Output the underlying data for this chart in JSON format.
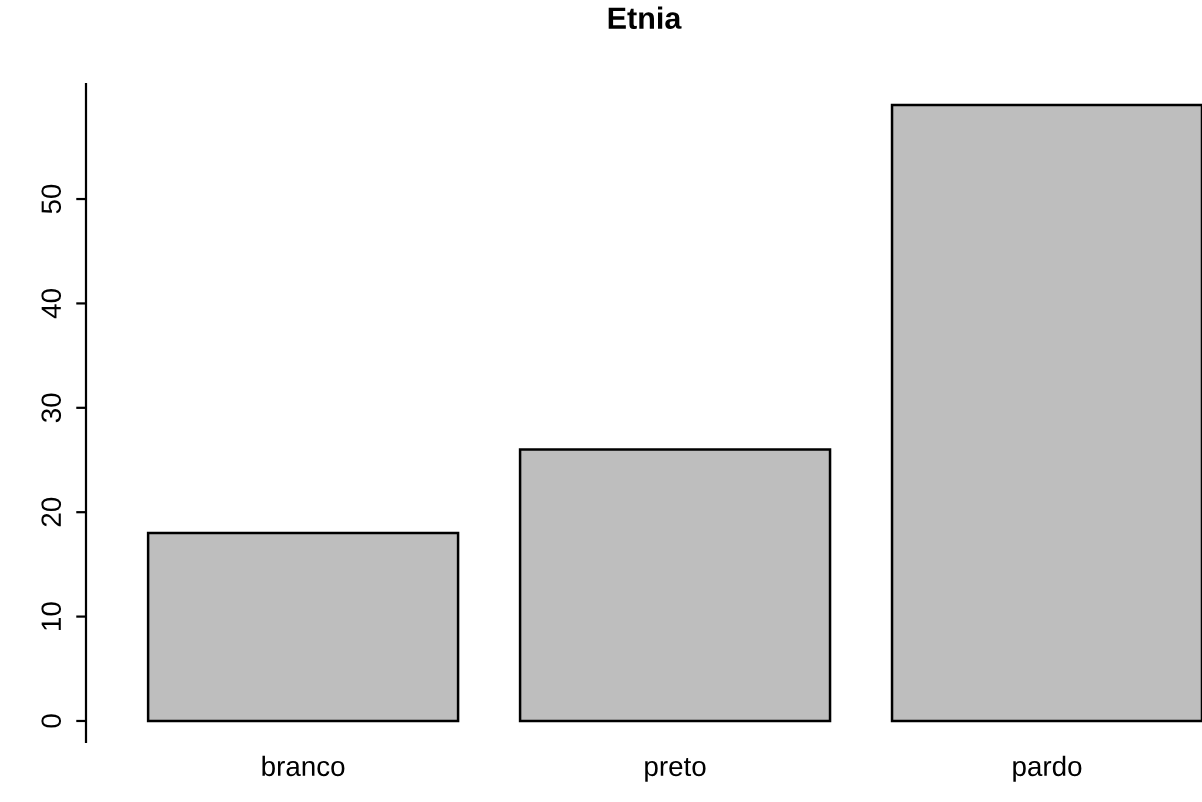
{
  "chart_data": {
    "type": "bar",
    "title": "Etnia",
    "categories": [
      "branco",
      "preto",
      "pardo"
    ],
    "values": [
      18,
      26,
      59
    ],
    "color": "#bebebe",
    "ylim": [
      -2,
      61
    ],
    "yticks": [
      0,
      10,
      20,
      30,
      40,
      50
    ],
    "grid": false
  }
}
